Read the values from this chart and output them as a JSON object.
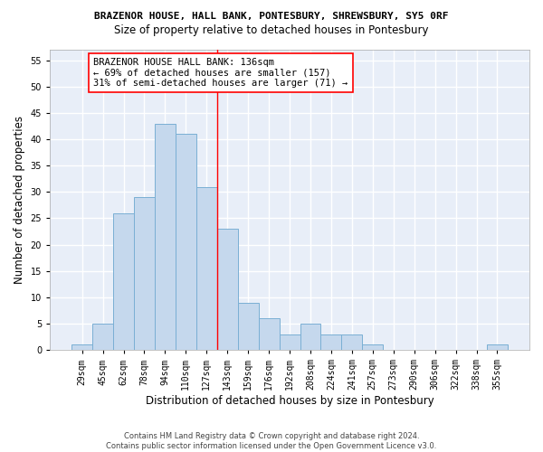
{
  "title": "BRAZENOR HOUSE, HALL BANK, PONTESBURY, SHREWSBURY, SY5 0RF",
  "subtitle": "Size of property relative to detached houses in Pontesbury",
  "xlabel": "Distribution of detached houses by size in Pontesbury",
  "ylabel": "Number of detached properties",
  "bar_values": [
    1,
    5,
    26,
    29,
    43,
    41,
    31,
    23,
    9,
    6,
    3,
    5,
    3,
    3,
    1,
    0,
    0,
    0,
    0,
    0,
    1
  ],
  "bar_labels": [
    "29sqm",
    "45sqm",
    "62sqm",
    "78sqm",
    "94sqm",
    "110sqm",
    "127sqm",
    "143sqm",
    "159sqm",
    "176sqm",
    "192sqm",
    "208sqm",
    "224sqm",
    "241sqm",
    "257sqm",
    "273sqm",
    "290sqm",
    "306sqm",
    "322sqm",
    "338sqm",
    "355sqm"
  ],
  "bar_color": "#c5d8ed",
  "bar_edge_color": "#7aafd4",
  "bar_width": 1.0,
  "ylim": [
    0,
    57
  ],
  "yticks": [
    0,
    5,
    10,
    15,
    20,
    25,
    30,
    35,
    40,
    45,
    50,
    55
  ],
  "red_line_x": 6.5,
  "annotation_box_text": "BRAZENOR HOUSE HALL BANK: 136sqm\n← 69% of detached houses are smaller (157)\n31% of semi-detached houses are larger (71) →",
  "footer_line1": "Contains HM Land Registry data © Crown copyright and database right 2024.",
  "footer_line2": "Contains public sector information licensed under the Open Government Licence v3.0.",
  "bg_color": "#e8eef8",
  "grid_color": "#d0d8e8",
  "title_fontsize": 8.0,
  "subtitle_fontsize": 8.5,
  "ylabel_fontsize": 8.5,
  "xlabel_fontsize": 8.5,
  "tick_fontsize": 7.0,
  "annot_fontsize": 7.5,
  "footer_fontsize": 6.0
}
